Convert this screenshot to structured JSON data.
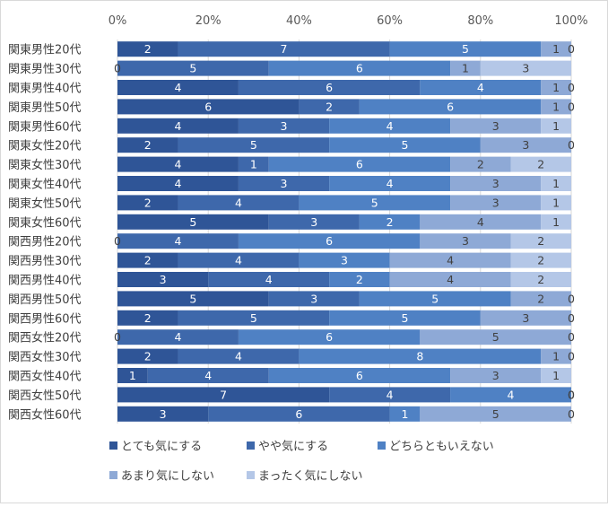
{
  "chart_data": {
    "type": "bar",
    "orientation": "horizontal",
    "stacked": "percent",
    "xlim": [
      0,
      100
    ],
    "x_ticks": [
      "0%",
      "20%",
      "40%",
      "60%",
      "80%",
      "100%"
    ],
    "grid": true,
    "legend_position": "bottom",
    "categories": [
      "関東男性20代",
      "関東男性30代",
      "関東男性40代",
      "関東男性50代",
      "関東男性60代",
      "関東女性20代",
      "関東女性30代",
      "関東女性40代",
      "関東女性50代",
      "関東女性60代",
      "関西男性20代",
      "関西男性30代",
      "関西男性40代",
      "関西男性50代",
      "関西男性60代",
      "関西女性20代",
      "関西女性30代",
      "関西女性40代",
      "関西女性50代",
      "関西女性60代"
    ],
    "series": [
      {
        "name": "とても気にする",
        "color": "#2f5597",
        "values": [
          2,
          0,
          4,
          6,
          4,
          2,
          4,
          4,
          2,
          5,
          0,
          2,
          3,
          5,
          2,
          0,
          2,
          1,
          7,
          3
        ]
      },
      {
        "name": "やや気にする",
        "color": "#3e68ab",
        "values": [
          7,
          5,
          6,
          2,
          3,
          5,
          1,
          3,
          4,
          3,
          4,
          4,
          4,
          3,
          5,
          4,
          4,
          4,
          4,
          6
        ]
      },
      {
        "name": "どちらともいえない",
        "color": "#4f81c4",
        "values": [
          5,
          6,
          4,
          6,
          4,
          5,
          6,
          4,
          5,
          2,
          6,
          3,
          2,
          5,
          5,
          6,
          8,
          6,
          4,
          1
        ]
      },
      {
        "name": "あまり気にしない",
        "color": "#8ea9d6",
        "values": [
          1,
          1,
          1,
          1,
          3,
          3,
          2,
          3,
          3,
          4,
          3,
          4,
          4,
          2,
          3,
          5,
          1,
          3,
          0,
          5
        ]
      },
      {
        "name": "まったく気にしない",
        "color": "#b4c7e7",
        "values": [
          0,
          3,
          0,
          0,
          1,
          0,
          2,
          1,
          1,
          1,
          2,
          2,
          2,
          0,
          0,
          0,
          0,
          1,
          0,
          0
        ]
      }
    ]
  }
}
